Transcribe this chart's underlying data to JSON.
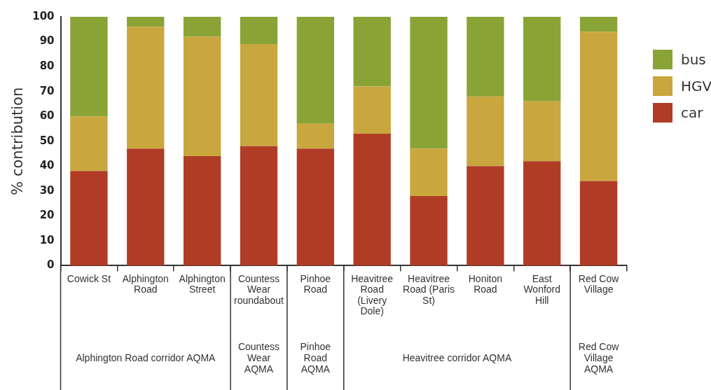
{
  "chart_data": {
    "type": "bar",
    "stacked": true,
    "ylabel": "% contribution",
    "categories": [
      "Cowick St",
      "Alphington Road",
      "Alphington Street",
      "Countess Wear roundabout",
      "Pinhoe Road",
      "Heavitree Road (Livery Dole)",
      "Heavitree Road (Paris St)",
      "Honiton Road",
      "East Wonford Hill",
      "Red Cow Village"
    ],
    "series": [
      {
        "name": "car",
        "color": "#b03c26",
        "values": [
          38,
          47,
          44,
          48,
          47,
          53,
          28,
          40,
          42,
          34
        ]
      },
      {
        "name": "HGV",
        "color": "#c9a73e",
        "values": [
          22,
          49,
          48,
          41,
          10,
          19,
          19,
          28,
          24,
          60
        ]
      },
      {
        "name": "bus",
        "color": "#8aa336",
        "values": [
          40,
          4,
          8,
          11,
          43,
          28,
          53,
          32,
          34,
          6
        ]
      }
    ],
    "ylim": [
      0,
      100
    ],
    "yticks": [
      0,
      10,
      20,
      30,
      40,
      50,
      60,
      70,
      80,
      90,
      100
    ],
    "grid": false,
    "legend": "right",
    "annotations": [
      "Alphington Road corridor AQMA",
      "Countess Wear AQMA",
      "Pinhoe Road AQMA",
      "Heavitree corridor AQMA",
      "Red Cow Village AQMA"
    ]
  }
}
